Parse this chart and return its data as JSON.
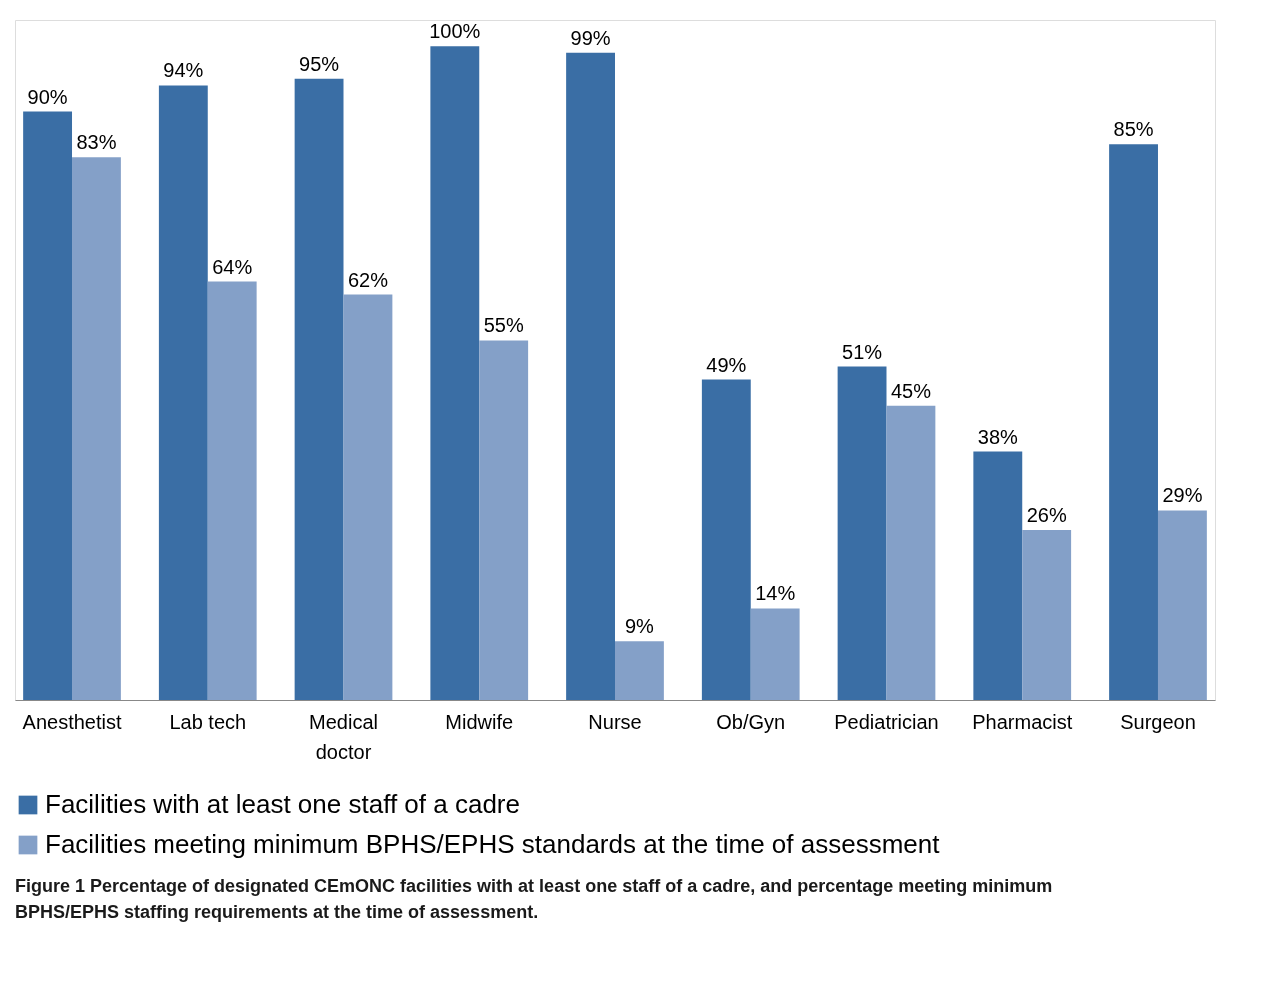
{
  "chart_data": {
    "type": "bar",
    "categories": [
      "Anesthetist",
      "Lab tech",
      "Medical doctor",
      "Midwife",
      "Nurse",
      "Ob/Gyn",
      "Pediatrician",
      "Pharmacist",
      "Surgeon"
    ],
    "series": [
      {
        "name": "Facilities with at least one staff of a cadre",
        "color": "#3a6ea5",
        "values": [
          90,
          94,
          95,
          100,
          99,
          49,
          51,
          38,
          85
        ],
        "value_labels": [
          "90%",
          "94%",
          "95%",
          "100%",
          "99%",
          "49%",
          "51%",
          "38%",
          "85%"
        ]
      },
      {
        "name": "Facilities meeting minimum BPHS/EPHS standards at the time of assessment",
        "color": "#84a0c8",
        "values": [
          83,
          64,
          62,
          55,
          9,
          14,
          45,
          26,
          29
        ],
        "value_labels": [
          "83%",
          "64%",
          "62%",
          "55%",
          "9%",
          "14%",
          "45%",
          "26%",
          "29%"
        ]
      }
    ],
    "legend": "bottom",
    "annotations": [
      "Figure 1 Percentage of designated CEmONC facilities with at least one staff of a cadre, and percentage meeting minimum BPHS/EPHS staffing requirements at the time of assessment."
    ]
  }
}
